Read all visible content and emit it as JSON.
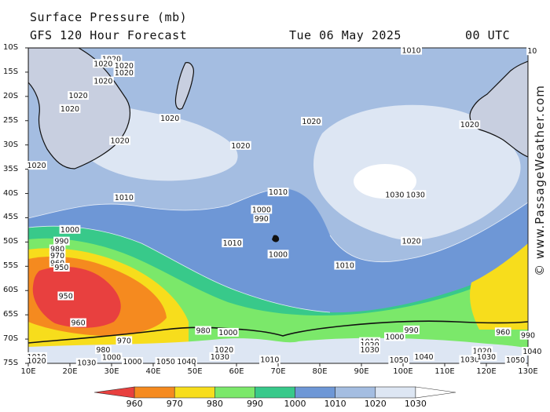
{
  "header": {
    "title": "Surface Pressure (mb)",
    "subtitle": "GFS 120 Hour Forecast",
    "date": "Tue 06 May 2025",
    "time": "00 UTC"
  },
  "watermark": "© www.PassageWeather.com",
  "axes": {
    "y_labels": [
      "10S",
      "15S",
      "20S",
      "25S",
      "30S",
      "35S",
      "40S",
      "45S",
      "50S",
      "55S",
      "60S",
      "65S",
      "70S",
      "75S"
    ],
    "x_labels": [
      "10E",
      "20E",
      "30E",
      "40E",
      "50E",
      "60E",
      "70E",
      "80E",
      "90E",
      "100E",
      "110E",
      "120E",
      "130E"
    ]
  },
  "legend": {
    "labels": [
      "960",
      "970",
      "980",
      "990",
      "1000",
      "1010",
      "1020",
      "1030"
    ],
    "colors": [
      "#e8403f",
      "#f58a1f",
      "#f7dd1c",
      "#7be86a",
      "#38c98a",
      "#6e97d6",
      "#a4bde1",
      "#dde6f3"
    ]
  },
  "isobar_labels": [
    {
      "text": "1020",
      "lon": 30,
      "lat": -12.3
    },
    {
      "text": "1020",
      "lon": 28,
      "lat": -13.2
    },
    {
      "text": "1020",
      "lon": 33,
      "lat": -13.6
    },
    {
      "text": "1020",
      "lon": 33,
      "lat": -15.1
    },
    {
      "text": "1020",
      "lon": 28,
      "lat": -16.8
    },
    {
      "text": "1020",
      "lon": 22,
      "lat": -19.8
    },
    {
      "text": "1020",
      "lon": 20,
      "lat": -22.5
    },
    {
      "text": "1020",
      "lon": 44,
      "lat": -24.5
    },
    {
      "text": "1020",
      "lon": 32,
      "lat": -29.1
    },
    {
      "text": "1020",
      "lon": 12,
      "lat": -34.2
    },
    {
      "text": "1020",
      "lon": 61,
      "lat": -30.1
    },
    {
      "text": "1010",
      "lon": 33,
      "lat": -40.8
    },
    {
      "text": "1010",
      "lon": 70,
      "lat": -39.7
    },
    {
      "text": "1000",
      "lon": 66,
      "lat": -43.3
    },
    {
      "text": "990",
      "lon": 66,
      "lat": -45.2
    },
    {
      "text": "1000",
      "lon": 20,
      "lat": -47.4
    },
    {
      "text": "990",
      "lon": 18,
      "lat": -49.8
    },
    {
      "text": "980",
      "lon": 17,
      "lat": -51.4
    },
    {
      "text": "970",
      "lon": 17,
      "lat": -52.8
    },
    {
      "text": "960",
      "lon": 17,
      "lat": -54.3
    },
    {
      "text": "950",
      "lon": 18,
      "lat": -55.2
    },
    {
      "text": "950",
      "lon": 19,
      "lat": -61.1
    },
    {
      "text": "960",
      "lon": 22,
      "lat": -66.6
    },
    {
      "text": "1010",
      "lon": 59,
      "lat": -50.2
    },
    {
      "text": "1000",
      "lon": 70,
      "lat": -52.5
    },
    {
      "text": "1010",
      "lon": 86,
      "lat": -54.8
    },
    {
      "text": "1020",
      "lon": 78,
      "lat": -25.1
    },
    {
      "text": "1020",
      "lon": 116,
      "lat": -25.8
    },
    {
      "text": "1030",
      "lon": 98,
      "lat": -40.2
    },
    {
      "text": "1030",
      "lon": 103,
      "lat": -40.2
    },
    {
      "text": "1020",
      "lon": 102,
      "lat": -49.8
    },
    {
      "text": "980",
      "lon": 52,
      "lat": -68.2
    },
    {
      "text": "1000",
      "lon": 58,
      "lat": -68.6
    },
    {
      "text": "990",
      "lon": 102,
      "lat": -68.1
    },
    {
      "text": "1000",
      "lon": 98,
      "lat": -69.5
    },
    {
      "text": "960",
      "lon": 124,
      "lat": -68.5
    },
    {
      "text": "990",
      "lon": 130,
      "lat": -69.2
    },
    {
      "text": "970",
      "lon": 33,
      "lat": -70.3
    },
    {
      "text": "980",
      "lon": 28,
      "lat": -72.2
    },
    {
      "text": "1000",
      "lon": 30,
      "lat": -73.7
    },
    {
      "text": "1000",
      "lon": 35,
      "lat": -74.6
    },
    {
      "text": "1050",
      "lon": 43,
      "lat": -74.6
    },
    {
      "text": "1040",
      "lon": 48,
      "lat": -74.6
    },
    {
      "text": "1030",
      "lon": 56,
      "lat": -73.6
    },
    {
      "text": "1020",
      "lon": 57,
      "lat": -72.2
    },
    {
      "text": "1010",
      "lon": 68,
      "lat": -74.2
    },
    {
      "text": "1010",
      "lon": 92,
      "lat": -70.5
    },
    {
      "text": "1020",
      "lon": 92,
      "lat": -71.2
    },
    {
      "text": "1030",
      "lon": 92,
      "lat": -72.2
    },
    {
      "text": "1040",
      "lon": 105,
      "lat": -73.6
    },
    {
      "text": "1050",
      "lon": 99,
      "lat": -74.3
    },
    {
      "text": "1030",
      "lon": 116,
      "lat": -74.2
    },
    {
      "text": "1020",
      "lon": 119,
      "lat": -72.4
    },
    {
      "text": "1030",
      "lon": 120,
      "lat": -73.6
    },
    {
      "text": "1050",
      "lon": 127,
      "lat": -74.3
    },
    {
      "text": "1040",
      "lon": 131,
      "lat": -72.5
    },
    {
      "text": "1010",
      "lon": 12,
      "lat": -73.6
    },
    {
      "text": "1020",
      "lon": 12,
      "lat": -74.4
    },
    {
      "text": "1030",
      "lon": 24,
      "lat": -74.8
    },
    {
      "text": "1010",
      "lon": 102,
      "lat": -10.5
    },
    {
      "text": "10",
      "lon": 131,
      "lat": -10.6
    }
  ]
}
